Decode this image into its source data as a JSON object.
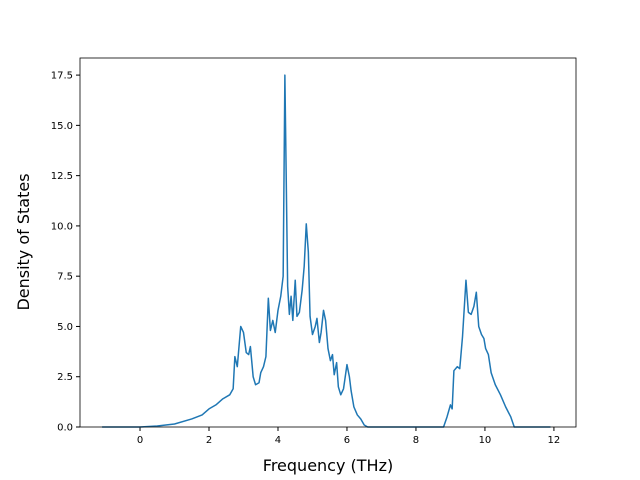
{
  "chart_data": {
    "type": "line",
    "xlabel": "Frequency (THz)",
    "ylabel": "Density of States",
    "xlim": [
      -1.74,
      12.64
    ],
    "ylim": [
      0,
      18.35
    ],
    "xticks": [
      0,
      2,
      4,
      6,
      8,
      10,
      12
    ],
    "yticks": [
      {
        "value": 0,
        "label": "0.0"
      },
      2.5,
      {
        "value": 5,
        "label": "5.0"
      },
      7.5,
      {
        "value": 10,
        "label": "10.0"
      },
      12.5,
      {
        "value": 15,
        "label": "15.0"
      },
      17.5
    ],
    "grid": false,
    "series": [
      {
        "color": "#1f77b4",
        "x": [
          -1.1,
          -0.5,
          0,
          0.5,
          1.0,
          1.5,
          1.8,
          2.0,
          2.2,
          2.4,
          2.6,
          2.7,
          2.75,
          2.82,
          2.92,
          3.0,
          3.08,
          3.15,
          3.2,
          3.28,
          3.35,
          3.45,
          3.5,
          3.58,
          3.65,
          3.72,
          3.78,
          3.85,
          3.92,
          4.0,
          4.08,
          4.15,
          4.2,
          4.28,
          4.33,
          4.38,
          4.43,
          4.5,
          4.55,
          4.62,
          4.7,
          4.76,
          4.82,
          4.88,
          4.93,
          5.0,
          5.08,
          5.13,
          5.2,
          5.25,
          5.32,
          5.38,
          5.45,
          5.52,
          5.58,
          5.63,
          5.7,
          5.75,
          5.82,
          5.9,
          6.0,
          6.07,
          6.12,
          6.2,
          6.3,
          6.4,
          6.5,
          6.6,
          7,
          8,
          8.8,
          8.9,
          9.0,
          9.05,
          9.1,
          9.2,
          9.27,
          9.35,
          9.45,
          9.52,
          9.6,
          9.68,
          9.75,
          9.82,
          9.9,
          9.97,
          10.02,
          10.1,
          10.18,
          10.3,
          10.45,
          10.6,
          10.75,
          10.85,
          11.5,
          11.9
        ],
        "values": [
          0,
          0,
          0,
          0.05,
          0.15,
          0.4,
          0.6,
          0.9,
          1.1,
          1.4,
          1.6,
          1.9,
          3.5,
          3.0,
          5.0,
          4.7,
          3.7,
          3.6,
          4.0,
          2.5,
          2.1,
          2.2,
          2.7,
          3.0,
          3.5,
          6.4,
          4.8,
          5.3,
          4.7,
          5.8,
          6.5,
          7.5,
          17.5,
          7.0,
          5.6,
          6.5,
          5.3,
          7.3,
          5.5,
          5.7,
          6.8,
          8.0,
          10.1,
          8.7,
          5.5,
          4.6,
          5.0,
          5.4,
          4.2,
          4.7,
          5.8,
          5.3,
          3.9,
          3.3,
          3.6,
          2.6,
          3.2,
          2.0,
          1.6,
          1.9,
          3.1,
          2.5,
          1.8,
          1.0,
          0.6,
          0.4,
          0.1,
          0,
          0,
          0,
          0,
          0.5,
          1.1,
          0.9,
          2.8,
          3.0,
          2.9,
          4.5,
          7.3,
          5.7,
          5.6,
          6.0,
          6.7,
          5.0,
          4.6,
          4.4,
          3.9,
          3.6,
          2.7,
          2.1,
          1.6,
          1.0,
          0.5,
          0,
          0,
          0
        ]
      }
    ]
  }
}
